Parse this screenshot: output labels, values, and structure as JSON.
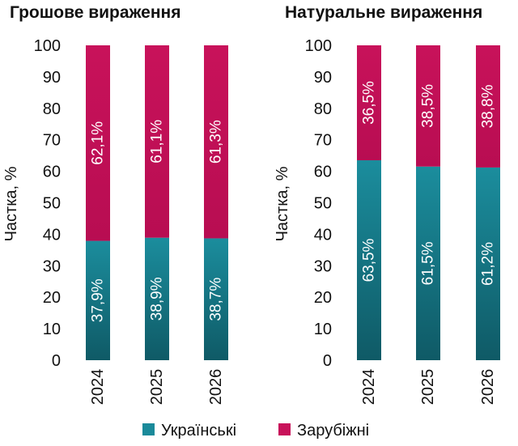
{
  "chart_data": [
    {
      "type": "bar",
      "stacked": true,
      "title": "Грошове вираження",
      "xlabel": "",
      "ylabel": "Частка, %",
      "ylim": [
        0,
        100
      ],
      "yticks": [
        "0",
        "10",
        "20",
        "30",
        "40",
        "50",
        "60",
        "70",
        "80",
        "90",
        "100"
      ],
      "categories": [
        "2024",
        "2025",
        "2026"
      ],
      "series": [
        {
          "name": "Українські",
          "values": [
            37.9,
            38.9,
            38.7
          ],
          "labels": [
            "37,9%",
            "38,9%",
            "38,7%"
          ]
        },
        {
          "name": "Зарубіжні",
          "values": [
            62.1,
            61.1,
            61.3
          ],
          "labels": [
            "62,1%",
            "61,1%",
            "61,3%"
          ]
        }
      ],
      "grid": false
    },
    {
      "type": "bar",
      "stacked": true,
      "title": "Натуральне вираження",
      "xlabel": "",
      "ylabel": "Частка, %",
      "ylim": [
        0,
        100
      ],
      "yticks": [
        "0",
        "10",
        "20",
        "30",
        "40",
        "50",
        "60",
        "70",
        "80",
        "90",
        "100"
      ],
      "categories": [
        "2024",
        "2025",
        "2026"
      ],
      "series": [
        {
          "name": "Українські",
          "values": [
            63.5,
            61.5,
            61.2
          ],
          "labels": [
            "63,5%",
            "61,5%",
            "61,2%"
          ]
        },
        {
          "name": "Зарубіжні",
          "values": [
            36.5,
            38.5,
            38.8
          ],
          "labels": [
            "36,5%",
            "38,5%",
            "38,8%"
          ]
        }
      ],
      "grid": false
    }
  ],
  "legend": {
    "placement": "bottom",
    "items": [
      {
        "label": "Українські",
        "color": "#1a8a9a"
      },
      {
        "label": "Зарубіжні",
        "color": "#c8125a"
      }
    ]
  },
  "colors": {
    "ukrainian_top": "#1b8d9d",
    "ukrainian_bottom": "#0f5a66",
    "foreign_top": "#c8125a",
    "foreign_bottom": "#b80d52"
  }
}
